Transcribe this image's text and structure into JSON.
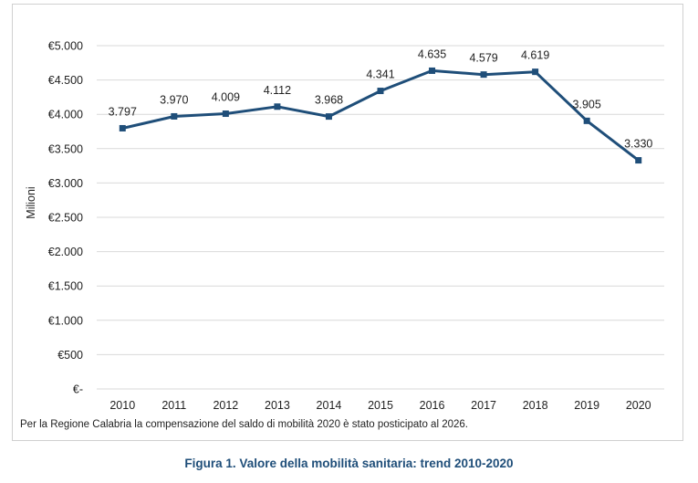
{
  "chart_data": {
    "type": "line",
    "title": "",
    "xlabel": "",
    "ylabel": "Milioni",
    "categories": [
      "2010",
      "2011",
      "2012",
      "2013",
      "2014",
      "2015",
      "2016",
      "2017",
      "2018",
      "2019",
      "2020"
    ],
    "series": [
      {
        "name": "Valore della mobilità sanitaria",
        "values": [
          3797,
          3970,
          4009,
          4112,
          3968,
          4341,
          4635,
          4579,
          4619,
          3905,
          3330
        ],
        "labels": [
          "3.797",
          "3.970",
          "4.009",
          "4.112",
          "3.968",
          "4.341",
          "4.635",
          "4.579",
          "4.619",
          "3.905",
          "3.330"
        ],
        "color": "#1f4e79"
      }
    ],
    "ylim": [
      0,
      5000
    ],
    "yticks": [
      0,
      500,
      1000,
      1500,
      2000,
      2500,
      3000,
      3500,
      4000,
      4500,
      5000
    ],
    "ytick_labels": [
      "€-",
      "€500",
      "€1.000",
      "€1.500",
      "€2.000",
      "€2.500",
      "€3.000",
      "€3.500",
      "€4.000",
      "€4.500",
      "€5.000"
    ],
    "grid": true,
    "gridColor": "#d9d9d9"
  },
  "footnote": "Per la Regione Calabria la compensazione del saldo di mobilità 2020 è stato posticipato al 2026.",
  "caption": "Figura 1. Valore della mobilità sanitaria: trend 2010-2020"
}
